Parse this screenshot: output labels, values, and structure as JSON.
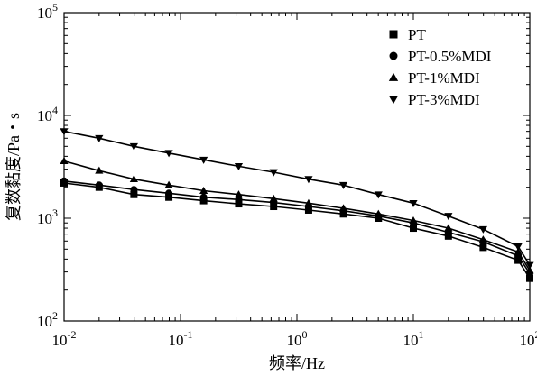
{
  "chart_data": {
    "type": "line",
    "title": "",
    "xlabel": "频率/Hz",
    "ylabel": "复数黏度/Pa・s",
    "xscale": "log",
    "yscale": "log",
    "xlim": [
      0.01,
      100
    ],
    "ylim": [
      100,
      100000
    ],
    "grid": false,
    "legend_position": "top-right",
    "xticks": [
      {
        "value": 0.01,
        "base": "10",
        "exp": "-2"
      },
      {
        "value": 0.1,
        "base": "10",
        "exp": "-1"
      },
      {
        "value": 1,
        "base": "10",
        "exp": "0"
      },
      {
        "value": 10,
        "base": "10",
        "exp": "1"
      },
      {
        "value": 100,
        "base": "10",
        "exp": "2"
      }
    ],
    "yticks": [
      {
        "value": 100,
        "base": "10",
        "exp": "2"
      },
      {
        "value": 1000,
        "base": "10",
        "exp": "3"
      },
      {
        "value": 10000,
        "base": "10",
        "exp": "4"
      },
      {
        "value": 100000,
        "base": "10",
        "exp": "5"
      }
    ],
    "x": [
      0.01,
      0.02,
      0.0398,
      0.0794,
      0.158,
      0.316,
      0.631,
      1.26,
      2.51,
      5.01,
      10,
      20,
      39.8,
      79.4,
      100
    ],
    "series": [
      {
        "name": "PT",
        "marker": "square",
        "values": [
          2200,
          2000,
          1700,
          1600,
          1480,
          1380,
          1300,
          1200,
          1100,
          1000,
          800,
          670,
          520,
          390,
          260
        ]
      },
      {
        "name": "PT-0.5%MDI",
        "marker": "circle",
        "values": [
          2300,
          2100,
          1900,
          1750,
          1600,
          1520,
          1420,
          1300,
          1180,
          1050,
          900,
          730,
          590,
          430,
          290
        ]
      },
      {
        "name": "PT-1%MDI",
        "marker": "triangle-up",
        "values": [
          3600,
          2900,
          2400,
          2100,
          1850,
          1700,
          1550,
          1400,
          1250,
          1100,
          950,
          800,
          620,
          470,
          310
        ]
      },
      {
        "name": "PT-3%MDI",
        "marker": "triangle-down",
        "values": [
          7000,
          6000,
          5000,
          4300,
          3700,
          3200,
          2800,
          2400,
          2100,
          1700,
          1400,
          1050,
          780,
          530,
          350
        ]
      }
    ]
  }
}
